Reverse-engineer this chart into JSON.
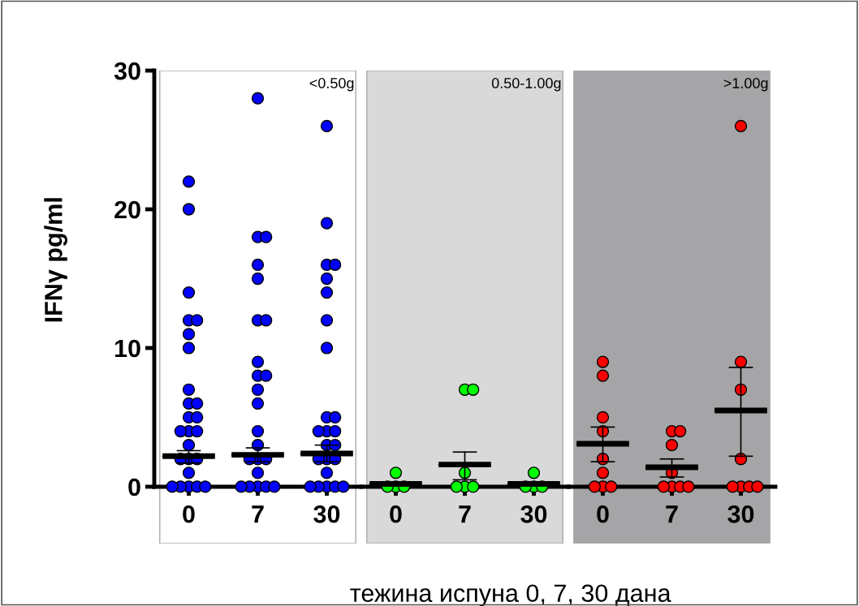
{
  "chart_data": [
    {
      "type": "scatter",
      "ylabel": "IFNγ pg/ml",
      "annotations": [
        "<0.50g"
      ],
      "categories": [
        "0",
        "7",
        "30"
      ],
      "ylim": [
        -4.1,
        30
      ],
      "yticks": [
        0,
        10,
        20,
        30
      ],
      "grid": false,
      "legend": false,
      "series": [
        {
          "color": "#0000ff",
          "marker": "circle",
          "x": [
            "0",
            "0",
            "0",
            "0",
            "0",
            "0",
            "0",
            "0",
            "0",
            "0",
            "0",
            "0",
            "0",
            "0",
            "0",
            "0",
            "0",
            "0",
            "0",
            "0",
            "0",
            "0",
            "0",
            "0",
            "0",
            "7",
            "7",
            "7",
            "7",
            "7",
            "7",
            "7",
            "7",
            "7",
            "7",
            "7",
            "7",
            "7",
            "7",
            "7",
            "7",
            "7",
            "7",
            "7",
            "7",
            "7",
            "7",
            "7",
            "30",
            "30",
            "30",
            "30",
            "30",
            "30",
            "30",
            "30",
            "30",
            "30",
            "30",
            "30",
            "30",
            "30",
            "30",
            "30",
            "30",
            "30",
            "30",
            "30",
            "30",
            "30",
            "30",
            "30"
          ],
          "values": [
            22,
            20,
            14,
            12,
            12,
            11,
            10,
            7,
            6,
            6,
            5,
            5,
            4,
            4,
            4,
            3,
            2,
            2,
            2,
            1,
            0,
            0,
            0,
            0,
            0,
            28,
            18,
            18,
            16,
            15,
            12,
            12,
            9,
            8,
            8,
            7,
            6,
            4,
            3,
            2,
            2,
            2,
            1,
            0,
            0,
            0,
            0,
            0,
            26,
            19,
            16,
            16,
            15,
            14,
            12,
            10,
            5,
            5,
            4,
            4,
            4,
            3,
            3,
            2,
            2,
            2,
            1,
            0,
            0,
            0,
            0,
            0
          ]
        },
        {
          "type": "box",
          "color": "#000000",
          "boxes": [
            {
              "low": 1.7,
              "q1": 2.2,
              "median": 2.2,
              "q3": 2.2,
              "high": 2.6
            },
            {
              "low": 1.8,
              "q1": 2.3,
              "median": 2.3,
              "q3": 2.3,
              "high": 2.8
            },
            {
              "low": 1.8,
              "q1": 2.4,
              "median": 2.4,
              "q3": 2.4,
              "high": 3.0
            }
          ]
        }
      ]
    },
    {
      "type": "scatter",
      "annotations": [
        "0.50-1.00g"
      ],
      "xlabel": "тежина испуна 0, 7, 30 дана",
      "categories": [
        "0",
        "7",
        "30"
      ],
      "ylim": [
        -4.1,
        30
      ],
      "tick_labels": "x",
      "grid": false,
      "legend": false,
      "series": [
        {
          "color": "#00ff00",
          "marker": "circle",
          "x": [
            "0",
            "0",
            "0",
            "0",
            "7",
            "7",
            "7",
            "7",
            "7",
            "7",
            "30",
            "30",
            "30",
            "30"
          ],
          "values": [
            1,
            0,
            0,
            0,
            7,
            7,
            1,
            0,
            0,
            0,
            1,
            0,
            0,
            0
          ]
        },
        {
          "type": "box",
          "color": "#000000",
          "boxes": [
            {
              "low": 0.2,
              "q1": 0.2,
              "median": 0.2,
              "q3": 0.2,
              "high": 0.2
            },
            {
              "low": 0.5,
              "q1": 1.6,
              "median": 1.6,
              "q3": 1.6,
              "high": 2.5
            },
            {
              "low": 0.2,
              "q1": 0.2,
              "median": 0.2,
              "q3": 0.2,
              "high": 0.2
            }
          ]
        }
      ]
    },
    {
      "type": "scatter",
      "annotations": [
        ">1.00g"
      ],
      "categories": [
        "0",
        "7",
        "30"
      ],
      "ylim": [
        -4.1,
        30
      ],
      "tick_labels": "x",
      "grid": false,
      "legend": false,
      "series": [
        {
          "color": "#ff0000",
          "marker": "circle",
          "x": [
            "0",
            "0",
            "0",
            "0",
            "0",
            "0",
            "0",
            "0",
            "0",
            "7",
            "7",
            "7",
            "7",
            "7",
            "7",
            "7",
            "7",
            "30",
            "30",
            "30",
            "30",
            "30",
            "30",
            "30",
            "30"
          ],
          "values": [
            9,
            8,
            5,
            4,
            2,
            1,
            0,
            0,
            0,
            4,
            4,
            3,
            1,
            0,
            0,
            0,
            0,
            26,
            9,
            7,
            2,
            0,
            0,
            0,
            0
          ]
        },
        {
          "type": "box",
          "color": "#000000",
          "boxes": [
            {
              "low": 1.8,
              "q1": 3.1,
              "median": 3.1,
              "q3": 3.1,
              "high": 4.3
            },
            {
              "low": 0.7,
              "q1": 1.4,
              "median": 1.4,
              "q3": 1.4,
              "high": 2.0
            },
            {
              "low": 2.2,
              "q1": 5.5,
              "median": 5.5,
              "q3": 5.5,
              "high": 8.6
            }
          ]
        }
      ]
    }
  ]
}
